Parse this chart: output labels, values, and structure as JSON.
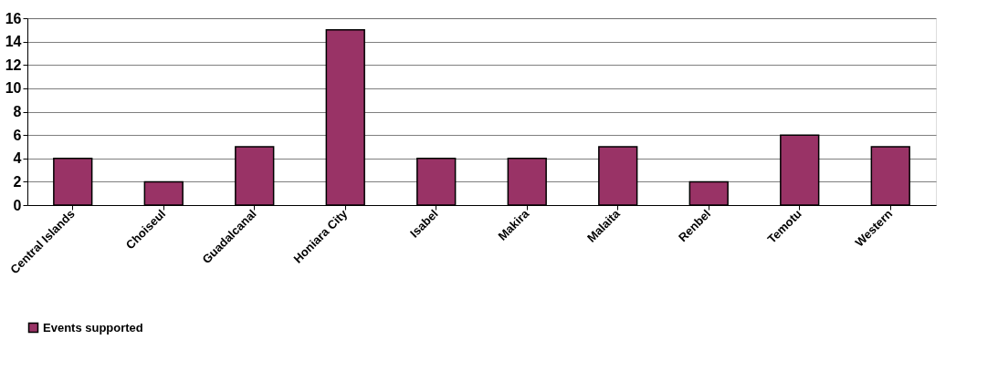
{
  "chart_data": {
    "type": "bar",
    "categories": [
      "Central Islands",
      "Choiseul",
      "Guadalcanal",
      "Honiara City",
      "Isabel",
      "Makira",
      "Malaita",
      "Renbel",
      "Temotu",
      "Western"
    ],
    "series": [
      {
        "name": "Events supported",
        "color": "#993366",
        "values": [
          4,
          2,
          5,
          15,
          4,
          4,
          5,
          2,
          6,
          5
        ]
      }
    ],
    "ylim": [
      0,
      16
    ],
    "yticks": [
      0,
      2,
      4,
      6,
      8,
      10,
      12,
      14,
      16
    ],
    "grid": "y",
    "legend": "bottom"
  }
}
